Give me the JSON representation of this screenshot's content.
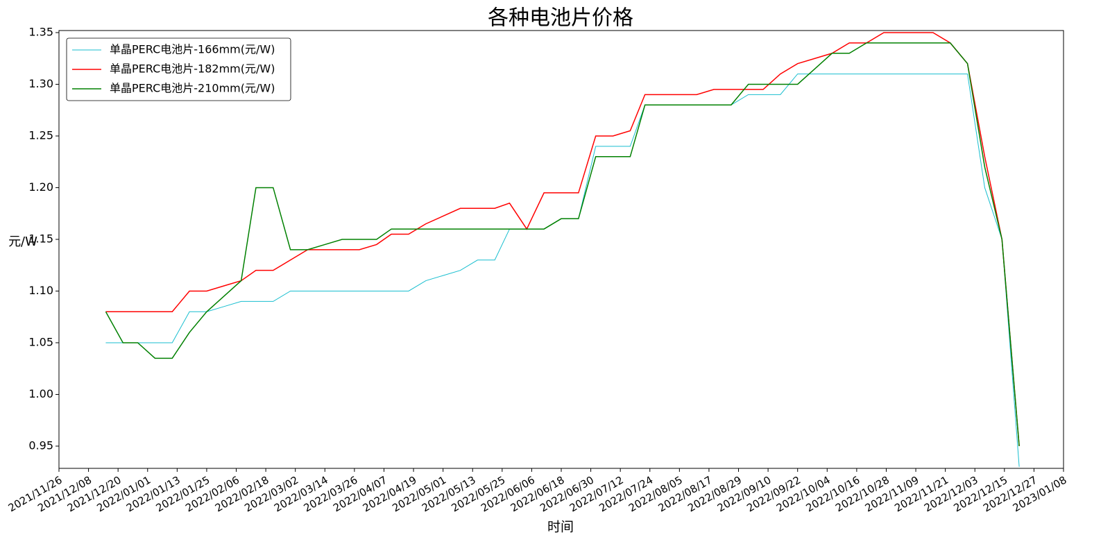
{
  "chart_data": {
    "type": "line",
    "title": "各种电池片价格",
    "x_label": "时间",
    "y_label": "元/W",
    "x": [
      "2021/12/15",
      "2021/12/22",
      "2021/12/28",
      "2022/01/04",
      "2022/01/11",
      "2022/01/18",
      "2022/01/25",
      "2022/02/01",
      "2022/02/08",
      "2022/02/14",
      "2022/02/21",
      "2022/02/28",
      "2022/03/07",
      "2022/03/14",
      "2022/03/21",
      "2022/03/28",
      "2022/04/04",
      "2022/04/10",
      "2022/04/17",
      "2022/04/24",
      "2022/05/01",
      "2022/05/08",
      "2022/05/15",
      "2022/05/22",
      "2022/05/28",
      "2022/06/04",
      "2022/06/11",
      "2022/06/18",
      "2022/06/25",
      "2022/07/02",
      "2022/07/09",
      "2022/07/16",
      "2022/07/22",
      "2022/07/29",
      "2022/08/05",
      "2022/08/12",
      "2022/08/19",
      "2022/08/26",
      "2022/09/02",
      "2022/09/08",
      "2022/09/15",
      "2022/09/22",
      "2022/09/29",
      "2022/10/06",
      "2022/10/13",
      "2022/10/20",
      "2022/10/27",
      "2022/11/02",
      "2022/11/09",
      "2022/11/16",
      "2022/11/23",
      "2022/11/30",
      "2022/12/07",
      "2022/12/14",
      "2022/12/21"
    ],
    "series": [
      {
        "name": "单晶PERC电池片-166mm(元/W)",
        "color": "#17becf",
        "width": 1,
        "values": [
          1.05,
          1.05,
          1.05,
          1.05,
          1.05,
          1.08,
          1.08,
          1.085,
          1.09,
          1.09,
          1.09,
          1.1,
          1.1,
          1.1,
          1.1,
          1.1,
          1.1,
          1.1,
          1.1,
          1.11,
          1.115,
          1.12,
          1.13,
          1.13,
          1.16,
          1.16,
          1.16,
          1.17,
          1.17,
          1.24,
          1.24,
          1.24,
          1.28,
          1.28,
          1.28,
          1.28,
          1.28,
          1.28,
          1.29,
          1.29,
          1.29,
          1.31,
          1.31,
          1.31,
          1.31,
          1.31,
          1.31,
          1.31,
          1.31,
          1.31,
          1.31,
          1.31,
          1.2,
          1.15,
          0.93
        ]
      },
      {
        "name": "单晶PERC电池片-182mm(元/W)",
        "color": "#ff0000",
        "width": 1.5,
        "values": [
          1.08,
          1.08,
          1.08,
          1.08,
          1.08,
          1.1,
          1.1,
          1.105,
          1.11,
          1.12,
          1.12,
          1.13,
          1.14,
          1.14,
          1.14,
          1.14,
          1.145,
          1.155,
          1.155,
          1.165,
          1.1725,
          1.18,
          1.18,
          1.18,
          1.185,
          1.16,
          1.195,
          1.195,
          1.195,
          1.25,
          1.25,
          1.255,
          1.29,
          1.29,
          1.29,
          1.29,
          1.295,
          1.295,
          1.295,
          1.295,
          1.31,
          1.32,
          1.325,
          1.33,
          1.34,
          1.34,
          1.35,
          1.35,
          1.35,
          1.35,
          1.34,
          1.32,
          1.23,
          1.15,
          0.95
        ]
      },
      {
        "name": "单晶PERC电池片-210mm(元/W)",
        "color": "#008000",
        "width": 1.5,
        "values": [
          1.08,
          1.05,
          1.05,
          1.035,
          1.035,
          1.06,
          1.08,
          1.095,
          1.11,
          1.2,
          1.2,
          1.14,
          1.14,
          1.145,
          1.15,
          1.15,
          1.15,
          1.16,
          1.16,
          1.16,
          1.16,
          1.16,
          1.16,
          1.16,
          1.16,
          1.16,
          1.16,
          1.17,
          1.17,
          1.23,
          1.23,
          1.23,
          1.28,
          1.28,
          1.28,
          1.28,
          1.28,
          1.28,
          1.3,
          1.3,
          1.3,
          1.3,
          1.315,
          1.33,
          1.33,
          1.34,
          1.34,
          1.34,
          1.34,
          1.34,
          1.34,
          1.32,
          1.22,
          1.15,
          0.95
        ]
      }
    ],
    "xlim": [
      "2021/11/26",
      "2023/01/08"
    ],
    "xticks": [
      "2021/11/26",
      "2021/12/08",
      "2021/12/20",
      "2022/01/01",
      "2022/01/13",
      "2022/01/25",
      "2022/02/06",
      "2022/02/18",
      "2022/03/02",
      "2022/03/14",
      "2022/03/26",
      "2022/04/07",
      "2022/04/19",
      "2022/05/01",
      "2022/05/13",
      "2022/05/25",
      "2022/06/06",
      "2022/06/18",
      "2022/06/30",
      "2022/07/12",
      "2022/07/24",
      "2022/08/05",
      "2022/08/17",
      "2022/08/29",
      "2022/09/10",
      "2022/09/22",
      "2022/10/04",
      "2022/10/16",
      "2022/10/28",
      "2022/11/09",
      "2022/11/21",
      "2022/12/03",
      "2022/12/15",
      "2022/12/27",
      "2023/01/08"
    ],
    "ylim": [
      0.9285,
      1.352
    ],
    "yticks": [
      0.95,
      {
        "value": 1.0,
        "label": "1.00"
      },
      1.05,
      {
        "value": 1.1,
        "label": "1.10"
      },
      1.15,
      {
        "value": 1.2,
        "label": "1.20"
      },
      1.25,
      {
        "value": 1.3,
        "label": "1.30"
      },
      1.35
    ],
    "legend": "upper left",
    "grid": false
  }
}
